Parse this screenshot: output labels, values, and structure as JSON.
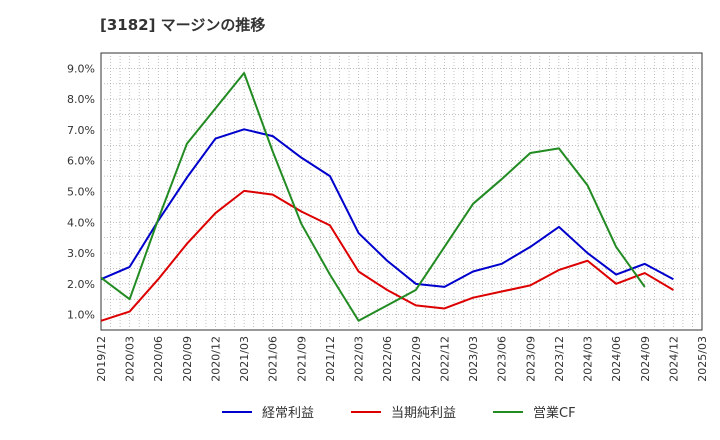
{
  "title": "[3182]  マージンの推移",
  "chart_data": {
    "type": "line",
    "title": "[3182]  マージンの推移",
    "xlabel": "",
    "ylabel": "",
    "ylim": [
      0.5,
      9.5
    ],
    "yticks": [
      "1.0%",
      "2.0%",
      "3.0%",
      "4.0%",
      "5.0%",
      "6.0%",
      "7.0%",
      "8.0%",
      "9.0%"
    ],
    "xticks": [
      "2019/12",
      "2020/03",
      "2020/06",
      "2020/09",
      "2020/12",
      "2021/03",
      "2021/06",
      "2021/09",
      "2021/12",
      "2022/03",
      "2022/06",
      "2022/09",
      "2022/12",
      "2023/03",
      "2023/06",
      "2023/09",
      "2023/12",
      "2024/03",
      "2024/06",
      "2024/09",
      "2024/12",
      "2025/03"
    ],
    "grid": true,
    "legend": "bottom",
    "series": [
      {
        "name": "経常利益",
        "color": "#0000cc",
        "values": [
          2.15,
          2.55,
          4.05,
          5.45,
          6.72,
          7.02,
          6.8,
          6.1,
          5.5,
          3.65,
          2.75,
          2.0,
          1.9,
          2.4,
          2.65,
          3.2,
          3.85,
          3.0,
          2.3,
          2.65,
          2.15
        ]
      },
      {
        "name": "当期純利益",
        "color": "#dd0000",
        "values": [
          0.8,
          1.1,
          2.15,
          3.3,
          4.3,
          5.02,
          4.9,
          4.35,
          3.9,
          2.4,
          1.8,
          1.3,
          1.2,
          1.55,
          1.75,
          1.95,
          2.45,
          2.75,
          2.0,
          2.35,
          1.8
        ]
      },
      {
        "name": "営業CF",
        "color": "#228b22",
        "values": [
          2.2,
          1.5,
          4.1,
          6.55,
          7.7,
          8.85,
          6.3,
          3.95,
          2.3,
          0.8,
          1.3,
          1.8,
          3.2,
          4.6,
          5.4,
          6.25,
          6.4,
          5.2,
          3.2,
          1.9
        ]
      }
    ]
  }
}
